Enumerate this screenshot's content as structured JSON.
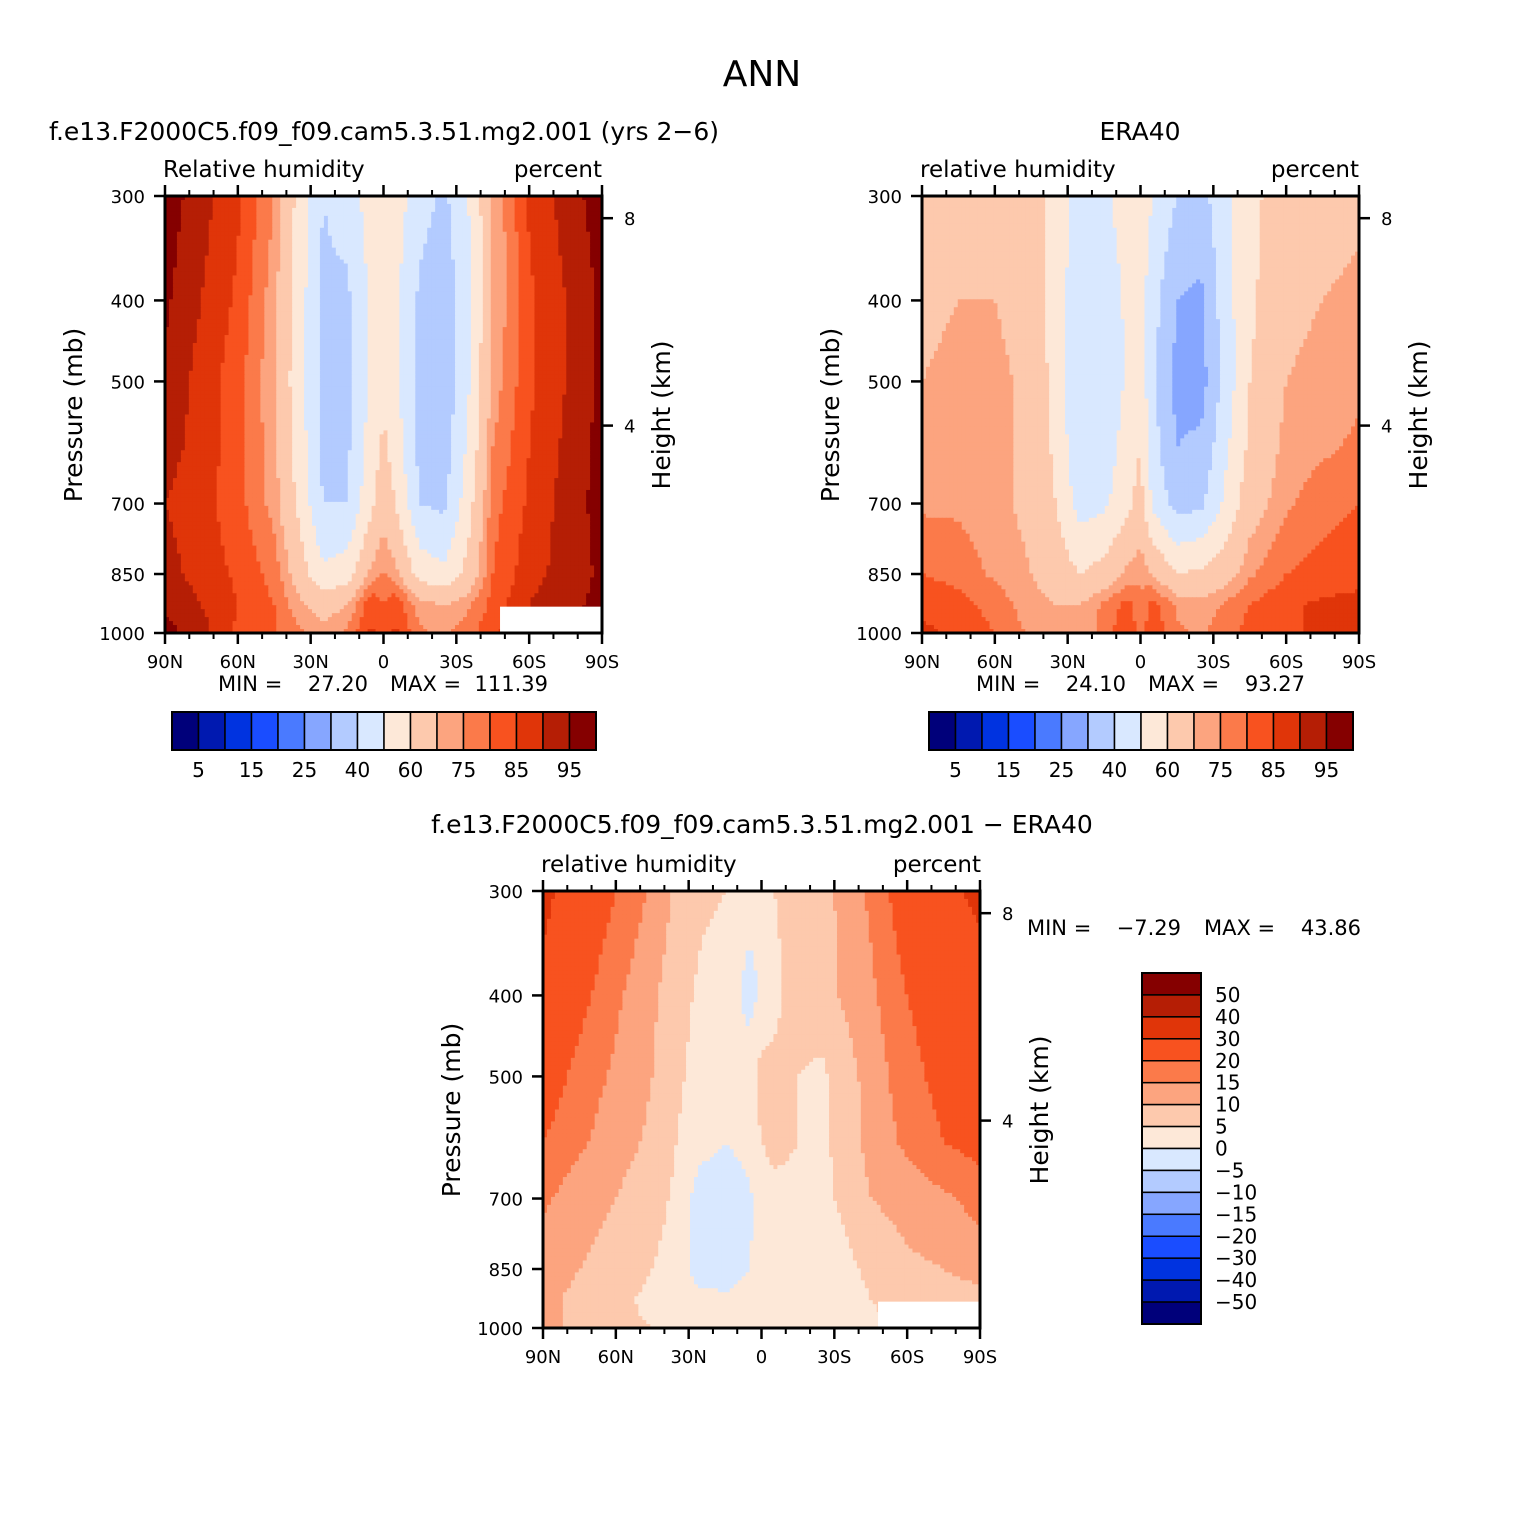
{
  "figure": {
    "title": "ANN"
  },
  "colors": {
    "rh_palette": [
      "#00007a",
      "#0019b0",
      "#0033e0",
      "#1a4dff",
      "#4a7aff",
      "#86a6ff",
      "#b3cbff",
      "#d9e8ff",
      "#fde8d8",
      "#fdc9ad",
      "#fca47f",
      "#fb7a4a",
      "#f8521f",
      "#e03509",
      "#b51e05",
      "#850000"
    ],
    "diff_palette": [
      "#00007a",
      "#0019b0",
      "#0033e0",
      "#1a4dff",
      "#4a7aff",
      "#86a6ff",
      "#b3cbff",
      "#d9e8ff",
      "#fde8d8",
      "#fdc9ad",
      "#fca47f",
      "#fb7a4a",
      "#f8521f",
      "#e03509",
      "#b51e05",
      "#850000"
    ]
  },
  "chart_data": [
    {
      "type": "heatmap",
      "title": "f.e13.F2000C5.f09_f09.cam5.3.51.mg2.001 (yrs 2−6)",
      "left_label": "Relative humidity",
      "right_label": "percent",
      "ylabel": "Pressure (mb)",
      "y2label": "Height (km)",
      "xticks": [
        "90N",
        "60N",
        "30N",
        "0",
        "30S",
        "60S",
        "90S"
      ],
      "xlim": [
        90,
        -90
      ],
      "yticks": [
        300,
        400,
        500,
        700,
        850,
        1000
      ],
      "ylim": [
        300,
        1000
      ],
      "y2ticks": [
        8,
        4
      ],
      "min_label": "MIN =",
      "min_value": "27.20",
      "max_label": "MAX =",
      "max_value": "111.39",
      "colorbar_labels": [
        "5",
        "15",
        "25",
        "40",
        "60",
        "75",
        "85",
        "95"
      ],
      "levels": [
        5,
        10,
        15,
        20,
        25,
        30,
        40,
        50,
        60,
        70,
        75,
        80,
        85,
        90,
        95
      ],
      "lat": [
        90,
        75,
        60,
        45,
        35,
        25,
        15,
        5,
        0,
        -5,
        -15,
        -25,
        -35,
        -45,
        -60,
        -75,
        -90
      ],
      "pressure": [
        300,
        400,
        500,
        600,
        700,
        850,
        925,
        1000
      ],
      "values": [
        [
          98,
          92,
          86,
          75,
          57,
          40,
          44,
          55,
          57,
          55,
          44,
          38,
          50,
          70,
          86,
          92,
          98
        ],
        [
          96,
          90,
          84,
          72,
          55,
          38,
          38,
          52,
          55,
          52,
          38,
          33,
          48,
          70,
          84,
          90,
          96
        ],
        [
          94,
          88,
          82,
          71,
          54,
          37,
          37,
          52,
          58,
          52,
          36,
          33,
          49,
          72,
          84,
          90,
          96
        ],
        [
          92,
          88,
          82,
          72,
          56,
          38,
          38,
          55,
          62,
          56,
          37,
          35,
          52,
          75,
          85,
          91,
          97
        ],
        [
          90,
          87,
          82,
          73,
          58,
          40,
          40,
          58,
          66,
          60,
          40,
          38,
          56,
          78,
          86,
          92,
          97
        ],
        [
          92,
          88,
          84,
          78,
          66,
          52,
          55,
          72,
          76,
          72,
          56,
          52,
          64,
          80,
          88,
          92,
          96
        ],
        [
          94,
          90,
          85,
          80,
          72,
          66,
          70,
          84,
          80,
          84,
          72,
          70,
          74,
          82,
          90,
          94,
          96
        ],
        [
          97,
          92,
          84,
          80,
          76,
          72,
          76,
          86,
          82,
          86,
          76,
          74,
          78,
          84,
          90,
          94,
          96
        ]
      ],
      "missing_region": {
        "lat_from": -48,
        "lat_to": -90,
        "p_from": 930,
        "p_to": 1000
      }
    },
    {
      "type": "heatmap",
      "title": "ERA40",
      "left_label": "relative humidity",
      "right_label": "percent",
      "ylabel": "Pressure (mb)",
      "y2label": "Height (km)",
      "xticks": [
        "90N",
        "60N",
        "30N",
        "0",
        "30S",
        "60S",
        "90S"
      ],
      "xlim": [
        90,
        -90
      ],
      "yticks": [
        300,
        400,
        500,
        700,
        850,
        1000
      ],
      "ylim": [
        300,
        1000
      ],
      "y2ticks": [
        8,
        4
      ],
      "min_label": "MIN =",
      "min_value": "24.10",
      "max_label": "MAX =",
      "max_value": "93.27",
      "colorbar_labels": [
        "5",
        "15",
        "25",
        "40",
        "60",
        "75",
        "85",
        "95"
      ],
      "levels": [
        5,
        10,
        15,
        20,
        25,
        30,
        40,
        50,
        60,
        70,
        75,
        80,
        85,
        90,
        95
      ],
      "lat": [
        90,
        75,
        60,
        45,
        35,
        25,
        15,
        5,
        0,
        -5,
        -15,
        -25,
        -35,
        -45,
        -60,
        -75,
        -90
      ],
      "pressure": [
        300,
        400,
        500,
        600,
        700,
        850,
        925,
        1000
      ],
      "values": [
        [
          66,
          68,
          68,
          64,
          56,
          46,
          48,
          55,
          56,
          50,
          40,
          36,
          48,
          58,
          64,
          66,
          68
        ],
        [
          68,
          70,
          70,
          66,
          56,
          42,
          44,
          52,
          54,
          44,
          30,
          28,
          46,
          58,
          68,
          70,
          72
        ],
        [
          70,
          72,
          72,
          68,
          56,
          40,
          42,
          52,
          56,
          42,
          27,
          26,
          44,
          60,
          70,
          72,
          74
        ],
        [
          72,
          72,
          72,
          68,
          58,
          42,
          44,
          55,
          60,
          44,
          30,
          32,
          48,
          62,
          72,
          74,
          76
        ],
        [
          74,
          74,
          72,
          68,
          60,
          46,
          48,
          58,
          64,
          48,
          36,
          38,
          52,
          66,
          74,
          78,
          80
        ],
        [
          80,
          78,
          74,
          70,
          66,
          60,
          64,
          72,
          74,
          70,
          60,
          62,
          66,
          74,
          80,
          82,
          84
        ],
        [
          84,
          82,
          78,
          72,
          70,
          70,
          76,
          82,
          76,
          82,
          74,
          72,
          76,
          80,
          84,
          86,
          86
        ],
        [
          86,
          84,
          80,
          74,
          70,
          70,
          78,
          84,
          78,
          84,
          76,
          74,
          78,
          82,
          84,
          86,
          88
        ]
      ]
    },
    {
      "type": "heatmap",
      "title": "f.e13.F2000C5.f09_f09.cam5.3.51.mg2.001 − ERA40",
      "left_label": "relative humidity",
      "right_label": "percent",
      "ylabel": "Pressure (mb)",
      "y2label": "Height (km)",
      "xticks": [
        "90N",
        "60N",
        "30N",
        "0",
        "30S",
        "60S",
        "90S"
      ],
      "xlim": [
        90,
        -90
      ],
      "yticks": [
        300,
        400,
        500,
        700,
        850,
        1000
      ],
      "ylim": [
        300,
        1000
      ],
      "y2ticks": [
        8,
        4
      ],
      "min_label": "MIN =",
      "min_value": "−7.29",
      "max_label": "MAX =",
      "max_value": "43.86",
      "colorbar_labels": [
        "50",
        "40",
        "30",
        "20",
        "15",
        "10",
        "5",
        "0",
        "−5",
        "−10",
        "−15",
        "−20",
        "−30",
        "−40",
        "−50"
      ],
      "levels": [
        -50,
        -40,
        -30,
        -20,
        -15,
        -10,
        -5,
        0,
        5,
        10,
        15,
        20,
        30,
        40,
        50
      ],
      "lat": [
        90,
        75,
        60,
        45,
        35,
        25,
        15,
        5,
        0,
        -5,
        -15,
        -25,
        -35,
        -45,
        -60,
        -75,
        -90
      ],
      "pressure": [
        300,
        400,
        500,
        600,
        700,
        850,
        925,
        1000
      ],
      "values": [
        [
          32,
          26,
          20,
          14,
          9,
          6,
          5,
          2,
          1,
          5,
          6,
          8,
          12,
          16,
          24,
          28,
          32
        ],
        [
          28,
          22,
          16,
          11,
          7,
          4,
          3,
          -2,
          1,
          4,
          7,
          8,
          11,
          14,
          20,
          24,
          26
        ],
        [
          24,
          18,
          14,
          10,
          6,
          3,
          2,
          3,
          7,
          6,
          5,
          4,
          8,
          12,
          18,
          22,
          24
        ],
        [
          20,
          16,
          12,
          9,
          5,
          2,
          0,
          2,
          5,
          6,
          5,
          4,
          7,
          12,
          16,
          20,
          22
        ],
        [
          16,
          12,
          10,
          7,
          4,
          -3,
          -4,
          -1,
          3,
          4,
          4,
          4,
          6,
          10,
          12,
          14,
          17
        ],
        [
          12,
          10,
          8,
          5,
          3,
          -3,
          -3,
          0,
          1,
          2,
          2,
          2,
          4,
          6,
          9,
          10,
          12
        ],
        [
          11,
          9,
          6,
          4,
          3,
          2,
          1,
          2,
          4,
          2,
          2,
          1,
          3,
          5,
          7,
          8,
          8
        ],
        [
          12,
          8,
          6,
          5,
          4,
          3,
          3,
          5,
          4,
          3,
          2,
          2,
          3,
          4,
          6,
          6,
          6
        ]
      ],
      "missing_region": {
        "lat_from": -48,
        "lat_to": -90,
        "p_from": 930,
        "p_to": 1000
      }
    }
  ]
}
